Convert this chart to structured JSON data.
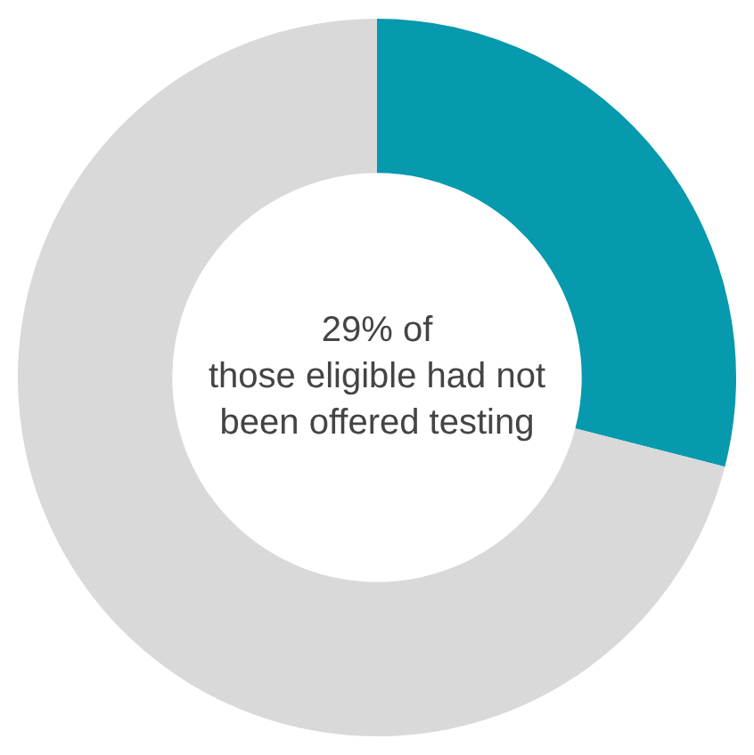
{
  "chart_data": {
    "type": "donut",
    "categories": [
      null,
      null
    ],
    "values": [
      29,
      71
    ],
    "colors": [
      "#0799ad",
      "#d9d9d9"
    ],
    "legend": false,
    "annotations": [
      "29% of those eligible had not been offered testing"
    ]
  }
}
